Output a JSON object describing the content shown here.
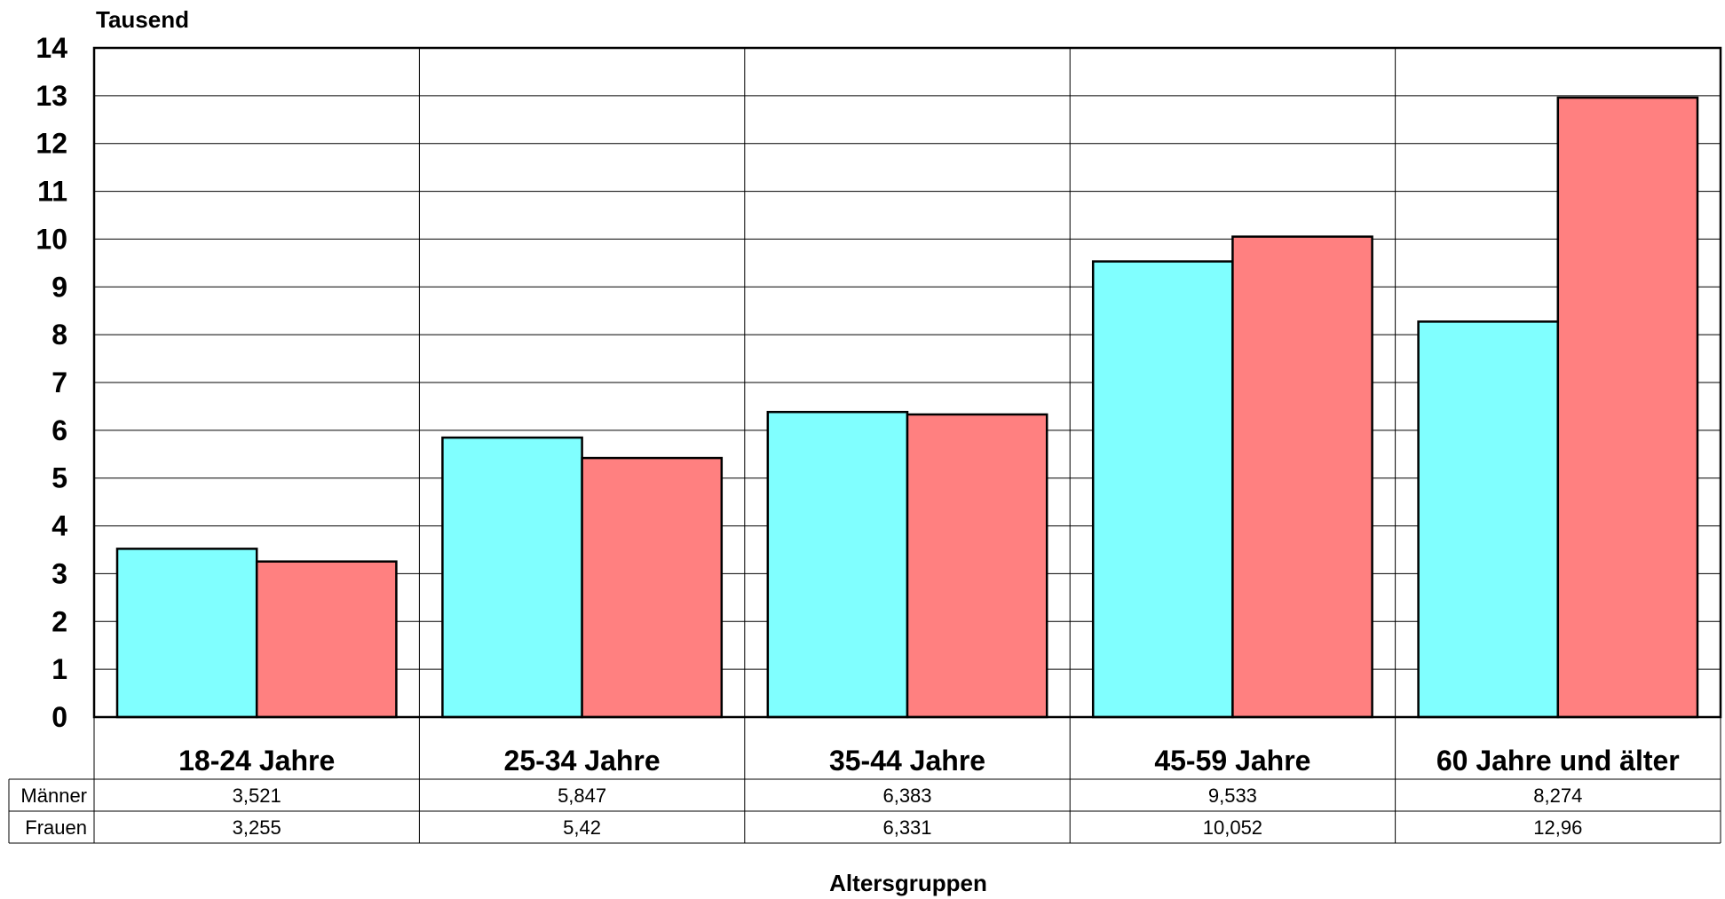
{
  "chart_data": {
    "type": "bar",
    "unit_label": "Tausend",
    "xlabel": "Altersgruppen",
    "ylim": [
      0,
      14
    ],
    "yticks": [
      "0",
      "1",
      "2",
      "3",
      "4",
      "5",
      "6",
      "7",
      "8",
      "9",
      "10",
      "11",
      "12",
      "13",
      "14"
    ],
    "grid": true,
    "categories": [
      "18-24 Jahre",
      "25-34 Jahre",
      "35-44 Jahre",
      "45-59 Jahre",
      "60 Jahre und älter"
    ],
    "series": [
      {
        "name": "Männer",
        "color": "#80FFFF",
        "values": [
          3.521,
          5.847,
          6.383,
          9.533,
          8.274
        ],
        "labels": [
          "3,521",
          "5,847",
          "6,383",
          "9,533",
          "8,274"
        ]
      },
      {
        "name": "Frauen",
        "color": "#FF8080",
        "values": [
          3.255,
          5.42,
          6.331,
          10.052,
          12.96
        ],
        "labels": [
          "3,255",
          "5,42",
          "6,331",
          "10,052",
          "12,96"
        ]
      }
    ]
  }
}
